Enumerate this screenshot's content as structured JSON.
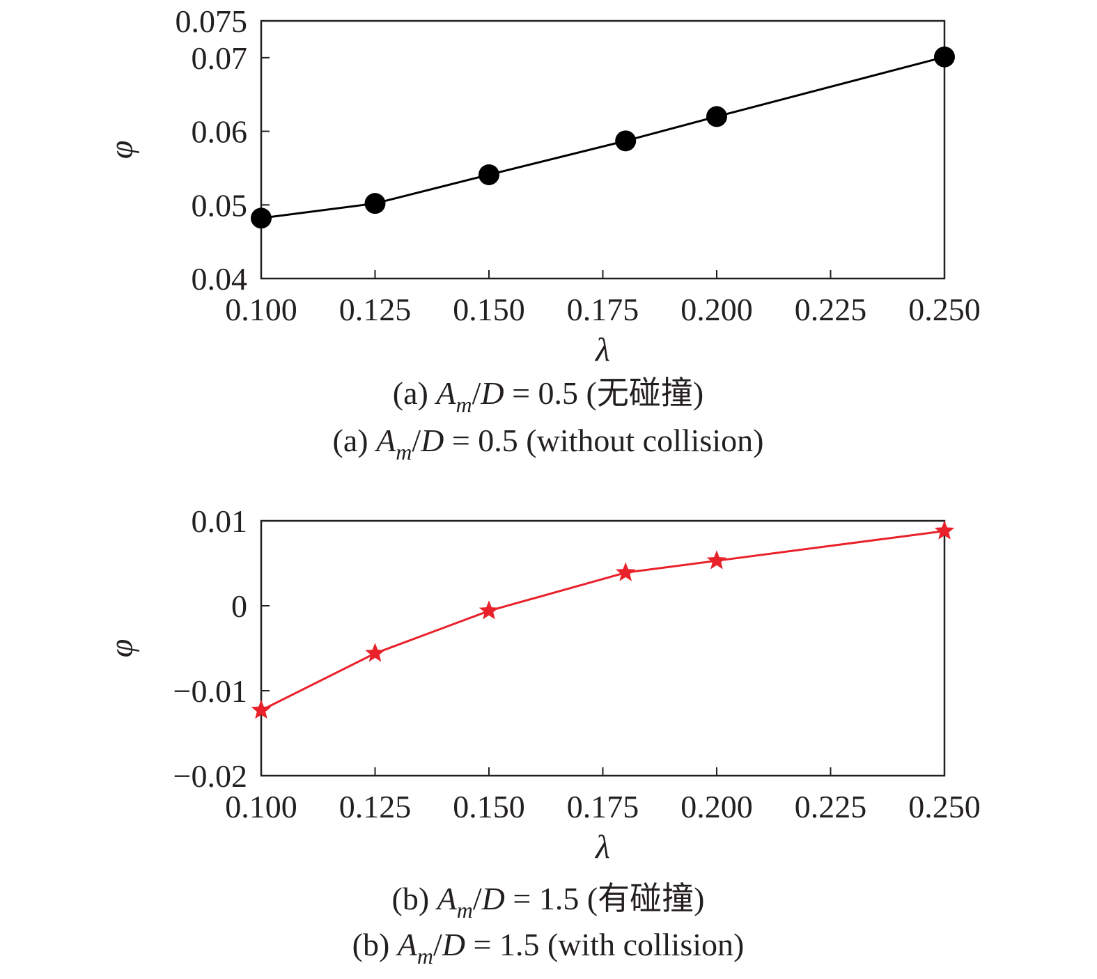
{
  "chart_data": [
    {
      "type": "line",
      "x": [
        0.1,
        0.125,
        0.15,
        0.18,
        0.2,
        0.25
      ],
      "series": [
        {
          "values": [
            0.0482,
            0.0502,
            0.0541,
            0.0587,
            0.062,
            0.0701
          ],
          "color": "#000000",
          "marker": "circle"
        }
      ],
      "xlim": [
        0.1,
        0.25
      ],
      "ylim": [
        0.04,
        0.075
      ],
      "xticks": [
        0.1,
        0.125,
        0.15,
        0.175,
        0.2,
        0.225,
        0.25
      ],
      "xtick_labels": [
        "0.100",
        "0.125",
        "0.150",
        "0.175",
        "0.200",
        "0.225",
        "0.250"
      ],
      "yticks": [
        0.04,
        0.05,
        0.06,
        0.07,
        0.075
      ],
      "ytick_labels": [
        "0.04",
        "0.05",
        "0.06",
        "0.07",
        "0.075"
      ],
      "xlabel": "λ",
      "ylabel": "φ",
      "grid": false,
      "caption_cn": {
        "prefix": "(a) ",
        "var": "A",
        "sub": "m",
        "rest": "/D = 0.5 (无碰撞)"
      },
      "caption_en": {
        "prefix": "(a) ",
        "var": "A",
        "sub": "m",
        "rest": "/D = 0.5 (without collision)"
      }
    },
    {
      "type": "line",
      "x": [
        0.1,
        0.125,
        0.15,
        0.18,
        0.2,
        0.25
      ],
      "series": [
        {
          "values": [
            -0.0123,
            -0.0056,
            -0.0006,
            0.0039,
            0.0053,
            0.0088
          ],
          "color": "#e8212a",
          "marker": "star"
        }
      ],
      "xlim": [
        0.1,
        0.25
      ],
      "ylim": [
        -0.02,
        0.01
      ],
      "xticks": [
        0.1,
        0.125,
        0.15,
        0.175,
        0.2,
        0.225,
        0.25
      ],
      "xtick_labels": [
        "0.100",
        "0.125",
        "0.150",
        "0.175",
        "0.200",
        "0.225",
        "0.250"
      ],
      "yticks": [
        -0.02,
        -0.01,
        0,
        0.01
      ],
      "ytick_labels": [
        "−0.02",
        "−0.01",
        "0",
        "0.01"
      ],
      "xlabel": "λ",
      "ylabel": "φ",
      "grid": false,
      "caption_cn": {
        "prefix": "(b) ",
        "var": "A",
        "sub": "m",
        "rest": "/D = 1.5 (有碰撞)"
      },
      "caption_en": {
        "prefix": "(b) ",
        "var": "A",
        "sub": "m",
        "rest": "/D = 1.5 (with collision)"
      }
    }
  ]
}
